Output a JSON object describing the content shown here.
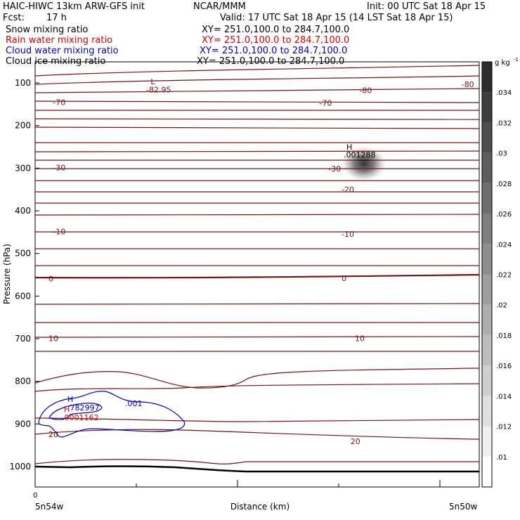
{
  "header": {
    "title": "HAIC-HIWC 13km ARW-GFS init",
    "org": "NCAR/MMM",
    "init": "Init: 00 UTC Sat 18 Apr 15",
    "fcst_label": "Fcst:",
    "fcst_value": "17 h",
    "valid": "Valid: 17 UTC Sat 18 Apr 15 (14 LST Sat 18 Apr 15)",
    "fields": [
      {
        "name": "Snow mixing ratio",
        "xy": "XY= 251.0,100.0 to 284.7,100.0",
        "color": "#000000"
      },
      {
        "name": "Rain water mixing ratio",
        "xy": "XY= 251.0,100.0 to 284.7,100.0",
        "color": "#dd0000"
      },
      {
        "name": "Cloud water mixing ratio",
        "xy": "XY= 251.0,100.0 to 284.7,100.0",
        "color": "#0000cc"
      },
      {
        "name": "Cloud ice mixing ratio",
        "xy": "XY= 251.0,100.0 to 284.7,100.0",
        "color": "#000000"
      }
    ]
  },
  "chart_data": {
    "type": "contour",
    "ylabel": "Pressure (hPa)",
    "xlabel": "Distance (km)",
    "x_start_label": "5n54w",
    "x_end_label": "5n50w",
    "x_zero_label": "0",
    "ylim": [
      1050,
      50
    ],
    "yticks": [
      100,
      200,
      300,
      400,
      500,
      600,
      700,
      800,
      900,
      1000
    ],
    "temperature_contours": {
      "color": "#7a1010",
      "labels": [
        {
          "value": "-80",
          "x_frac": 0.96,
          "p": 103
        },
        {
          "value": "-80",
          "x_frac": 0.73,
          "p": 117
        },
        {
          "value": "-82.95",
          "x_frac": 0.25,
          "p": 116
        },
        {
          "value": "-70",
          "x_frac": 0.04,
          "p": 145
        },
        {
          "value": "-70",
          "x_frac": 0.64,
          "p": 147
        },
        {
          "value": "-30",
          "x_frac": 0.04,
          "p": 299
        },
        {
          "value": "-30",
          "x_frac": 0.66,
          "p": 301
        },
        {
          "value": "-20",
          "x_frac": 0.69,
          "p": 350
        },
        {
          "value": "-10",
          "x_frac": 0.04,
          "p": 449
        },
        {
          "value": "-10",
          "x_frac": 0.69,
          "p": 454
        },
        {
          "value": "0",
          "x_frac": 0.03,
          "p": 559
        },
        {
          "value": "0",
          "x_frac": 0.69,
          "p": 558
        },
        {
          "value": "10",
          "x_frac": 0.03,
          "p": 699
        },
        {
          "value": "10",
          "x_frac": 0.72,
          "p": 699
        },
        {
          "value": "20",
          "x_frac": 0.03,
          "p": 924
        },
        {
          "value": "20",
          "x_frac": 0.71,
          "p": 941
        }
      ],
      "extrema": [
        {
          "symbol": "L",
          "x_frac": 0.26,
          "p": 97
        }
      ]
    },
    "cloud_water": {
      "color": "#0000cc",
      "contour_label": ".001",
      "max_symbol": "H",
      "max_value": ".782997"
    },
    "rain_water": {
      "color": "#dd0000",
      "max_symbol": "H",
      "max_value": ".0001162"
    },
    "cloud_ice": {
      "max_symbol": "H",
      "max_value": ".001288"
    },
    "colorbar": {
      "unit": "g kg",
      "unit_exp": "-1",
      "levels": [
        ".01",
        ".012",
        ".014",
        ".016",
        ".018",
        ".02",
        ".022",
        ".024",
        ".026",
        ".028",
        ".03",
        ".032",
        ".034"
      ]
    }
  }
}
